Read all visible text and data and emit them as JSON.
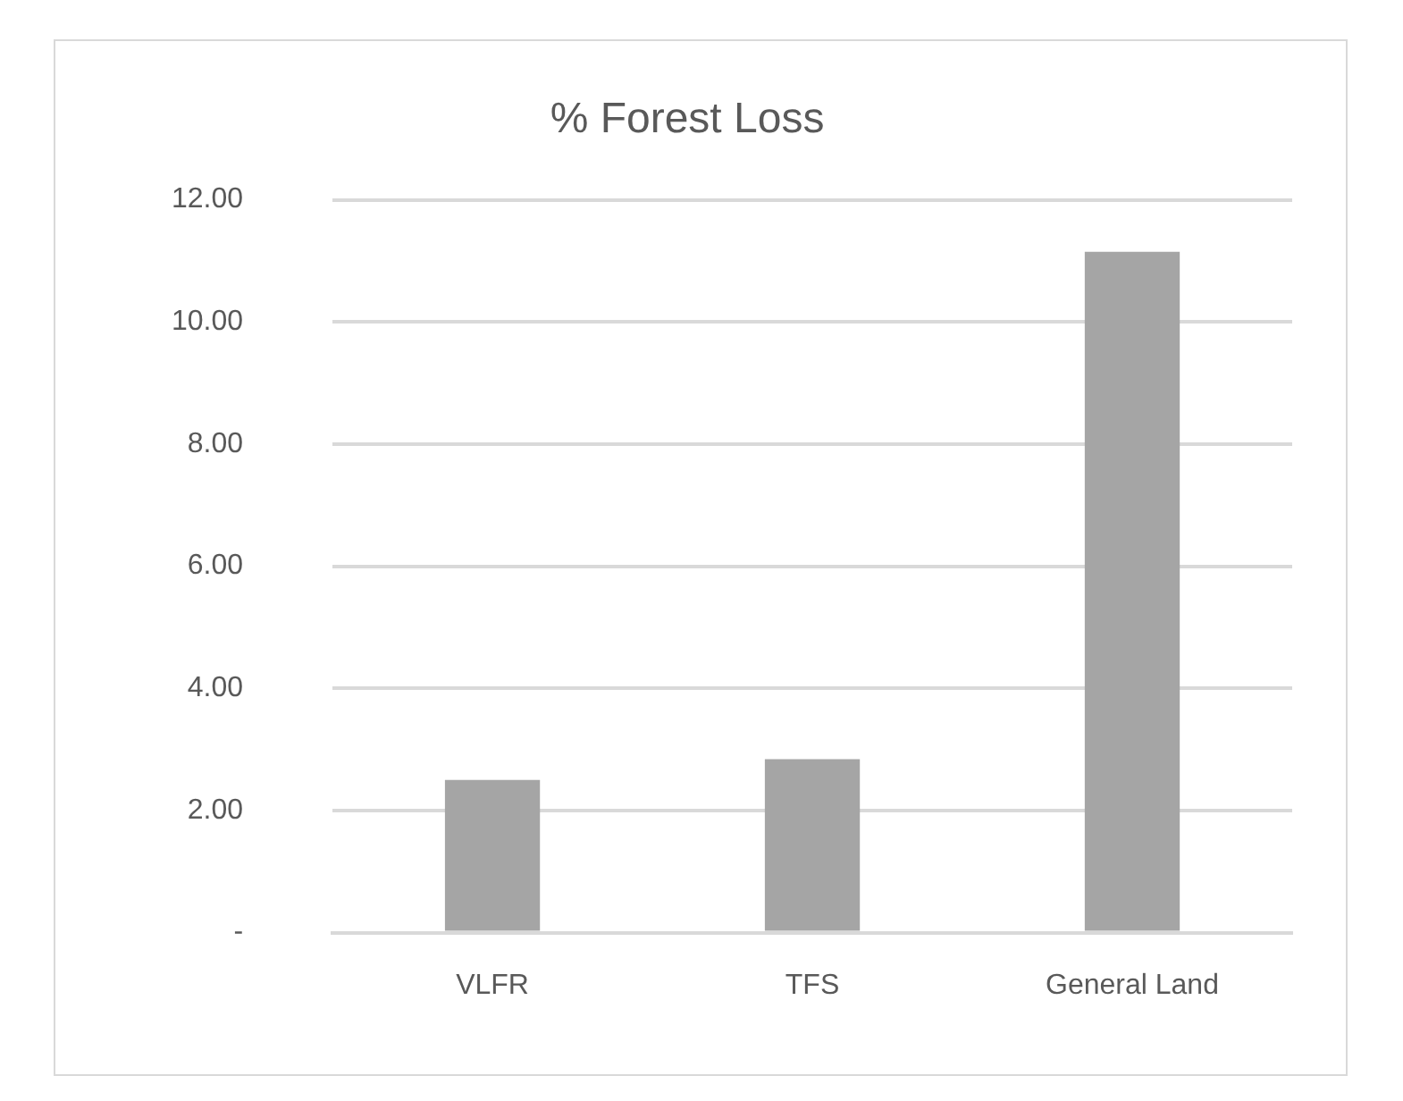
{
  "chart_data": {
    "type": "bar",
    "title": "% Forest Loss",
    "categories": [
      "VLFR",
      "TFS",
      "General Land"
    ],
    "values": [
      2.5,
      2.84,
      11.15
    ],
    "color": "#a5a5a5",
    "ylim": [
      0,
      12
    ],
    "yticks": [
      {
        "value": 0,
        "label": "-"
      },
      {
        "value": 2,
        "label": "2.00"
      },
      {
        "value": 4,
        "label": "4.00"
      },
      {
        "value": 6,
        "label": "6.00"
      },
      {
        "value": 8,
        "label": "8.00"
      },
      {
        "value": 10,
        "label": "10.00"
      },
      {
        "value": 12,
        "label": "12.00"
      }
    ],
    "grid": "y",
    "legend": false
  }
}
